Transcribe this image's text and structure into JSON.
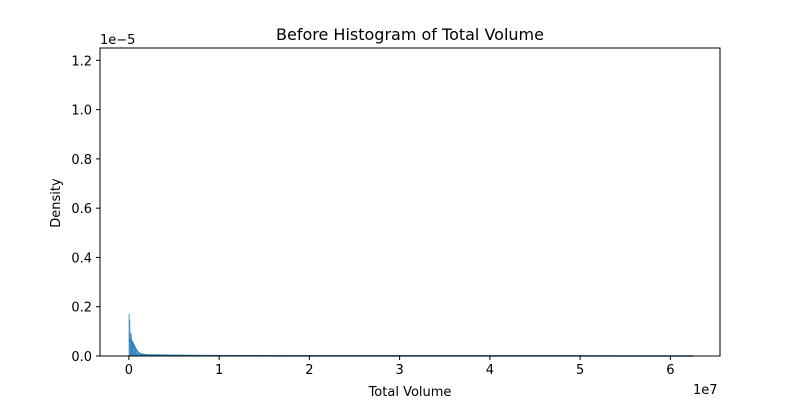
{
  "chart_data": {
    "type": "histogram",
    "title": "Before Histogram of Total Volume",
    "xlabel": "Total Volume",
    "ylabel": "Density",
    "x_offset_text": "1e7",
    "y_offset_text": "1e−5",
    "xlim": [
      -3200000,
      65500000
    ],
    "ylim": [
      0,
      1.25e-05
    ],
    "x_ticks": [
      0,
      10000000,
      20000000,
      30000000,
      40000000,
      50000000,
      60000000
    ],
    "x_tick_labels": [
      "0",
      "1",
      "2",
      "3",
      "4",
      "5",
      "6"
    ],
    "y_ticks": [
      0,
      2e-06,
      4e-06,
      6e-06,
      8e-06,
      1e-05,
      1.2e-05
    ],
    "y_tick_labels": [
      "0.0",
      "0.2",
      "0.4",
      "0.6",
      "0.8",
      "1.0",
      "1.2"
    ],
    "grid": false,
    "histogram": {
      "bin_start": 0,
      "bin_width": 62500,
      "bar_color": "#1f77b4",
      "values": [
        1.7e-06,
        1.45e-06,
        9.5e-07,
        7.2e-07,
        8.8e-07,
        6.1e-07,
        5.2e-07,
        4.4e-07,
        3.9e-07,
        3.3e-07,
        2.7e-07,
        2.2e-07,
        1.8e-07,
        1.4e-07,
        1.1e-07,
        9e-08,
        7e-08,
        6e-08,
        5e-08,
        4.5e-08,
        4e-08,
        3.5e-08,
        3e-08,
        2.8e-08,
        2.5e-08,
        2.2e-08,
        2e-08,
        1.8e-08,
        1.6e-08,
        1.5e-08,
        1.4e-08,
        1.3e-08
      ],
      "tail_start": 2000000,
      "tail_end": 62500000,
      "tail_density": 8e-09
    },
    "kde": {
      "color": "#1f77b4",
      "x": [
        0,
        200000,
        400000,
        600000,
        800000,
        1000000,
        1200000,
        1500000,
        2000000,
        3000000,
        5000000,
        8000000,
        12000000,
        20000000,
        30000000,
        40000000,
        50000000,
        62500000
      ],
      "y": [
        6.3e-07,
        6.4e-07,
        5.6e-07,
        4e-07,
        2.6e-07,
        1.6e-07,
        1e-07,
        6e-08,
        4e-08,
        3.5e-08,
        2.5e-08,
        1.5e-08,
        1e-08,
        7e-09,
        5e-09,
        4e-09,
        3e-09,
        2e-09
      ]
    }
  }
}
